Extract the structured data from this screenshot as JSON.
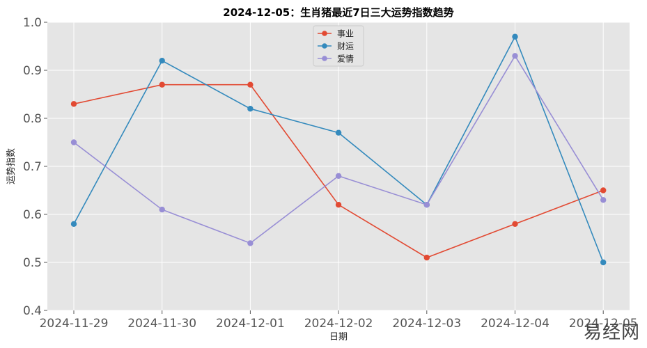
{
  "watermark": "易经网",
  "chart_data": {
    "type": "line",
    "title": "2024-12-05：生肖猪最近7日三大运势指数趋势",
    "xlabel": "日期",
    "ylabel": "运势指数",
    "categories": [
      "2024-11-29",
      "2024-11-30",
      "2024-12-01",
      "2024-12-02",
      "2024-12-03",
      "2024-12-04",
      "2024-12-05"
    ],
    "ylim": [
      0.4,
      1.0
    ],
    "yticks": [
      "0.4",
      "0.5",
      "0.6",
      "0.7",
      "0.8",
      "0.9",
      "1.0"
    ],
    "grid": true,
    "legend_position": "top-center",
    "series": [
      {
        "name": "事业",
        "color": "#E24A33",
        "values": [
          0.83,
          0.87,
          0.87,
          0.62,
          0.51,
          0.58,
          0.65
        ]
      },
      {
        "name": "财运",
        "color": "#348ABD",
        "values": [
          0.58,
          0.92,
          0.82,
          0.77,
          0.62,
          0.97,
          0.5
        ]
      },
      {
        "name": "爱情",
        "color": "#988ED5",
        "values": [
          0.75,
          0.61,
          0.54,
          0.68,
          0.62,
          0.93,
          0.63
        ]
      }
    ]
  }
}
